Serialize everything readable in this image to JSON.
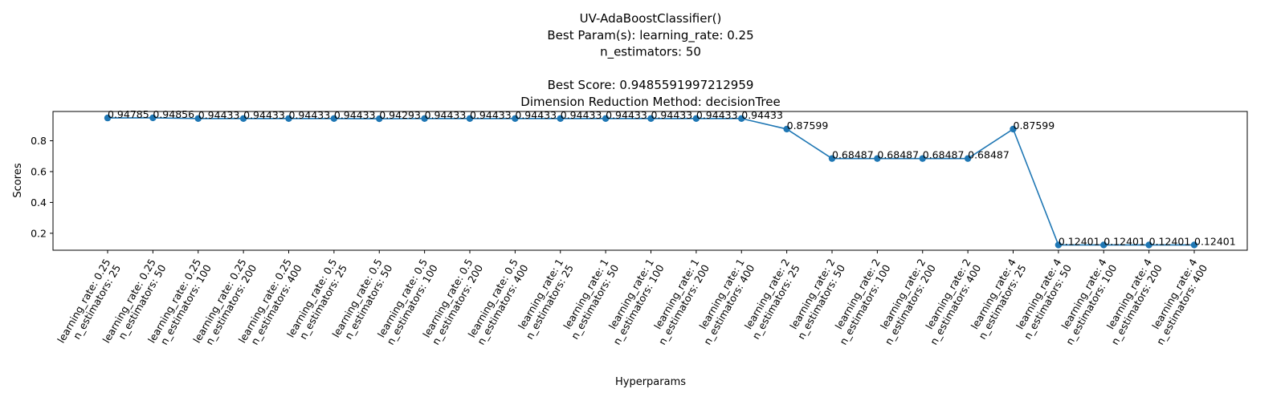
{
  "chart_data": {
    "type": "line",
    "title": [
      "UV-AdaBoostClassifier()",
      "Best Param(s): learning_rate: 0.25",
      "n_estimators: 50",
      "",
      "Best Score: 0.9485591997212959",
      "Dimension Reduction Method: decisionTree"
    ],
    "xlabel": "Hyperparams",
    "ylabel": "Scores",
    "ylim": [
      0.09,
      0.99
    ],
    "yticks": [
      0.2,
      0.4,
      0.6,
      0.8
    ],
    "grid": false,
    "series_color": "#1f77b4",
    "categories": [
      [
        "learning_rate: 0.25",
        "n_estimators: 25"
      ],
      [
        "learning_rate: 0.25",
        "n_estimators: 50"
      ],
      [
        "learning_rate: 0.25",
        "n_estimators: 100"
      ],
      [
        "learning_rate: 0.25",
        "n_estimators: 200"
      ],
      [
        "learning_rate: 0.25",
        "n_estimators: 400"
      ],
      [
        "learning_rate: 0.5",
        "n_estimators: 25"
      ],
      [
        "learning_rate: 0.5",
        "n_estimators: 50"
      ],
      [
        "learning_rate: 0.5",
        "n_estimators: 100"
      ],
      [
        "learning_rate: 0.5",
        "n_estimators: 200"
      ],
      [
        "learning_rate: 0.5",
        "n_estimators: 400"
      ],
      [
        "learning_rate: 1",
        "n_estimators: 25"
      ],
      [
        "learning_rate: 1",
        "n_estimators: 50"
      ],
      [
        "learning_rate: 1",
        "n_estimators: 100"
      ],
      [
        "learning_rate: 1",
        "n_estimators: 200"
      ],
      [
        "learning_rate: 1",
        "n_estimators: 400"
      ],
      [
        "learning_rate: 2",
        "n_estimators: 25"
      ],
      [
        "learning_rate: 2",
        "n_estimators: 50"
      ],
      [
        "learning_rate: 2",
        "n_estimators: 100"
      ],
      [
        "learning_rate: 2",
        "n_estimators: 200"
      ],
      [
        "learning_rate: 2",
        "n_estimators: 400"
      ],
      [
        "learning_rate: 4",
        "n_estimators: 25"
      ],
      [
        "learning_rate: 4",
        "n_estimators: 50"
      ],
      [
        "learning_rate: 4",
        "n_estimators: 100"
      ],
      [
        "learning_rate: 4",
        "n_estimators: 200"
      ],
      [
        "learning_rate: 4",
        "n_estimators: 400"
      ]
    ],
    "values": [
      0.94785,
      0.94856,
      0.94433,
      0.94433,
      0.94433,
      0.94433,
      0.94293,
      0.94433,
      0.94433,
      0.94433,
      0.94433,
      0.94433,
      0.94433,
      0.94433,
      0.94433,
      0.87599,
      0.68487,
      0.68487,
      0.68487,
      0.68487,
      0.87599,
      0.12401,
      0.12401,
      0.12401,
      0.12401
    ],
    "data_labels": [
      "0.94785",
      "0.94856",
      "0.94433",
      "0.94433",
      "0.94433",
      "0.94433",
      "0.94293",
      "0.94433",
      "0.94433",
      "0.94433",
      "0.94433",
      "0.94433",
      "0.94433",
      "0.94433",
      "0.94433",
      "0.87599",
      "0.68487",
      "0.68487",
      "0.68487",
      "0.68487",
      "0.87599",
      "0.12401",
      "0.12401",
      "0.12401",
      "0.12401"
    ]
  }
}
